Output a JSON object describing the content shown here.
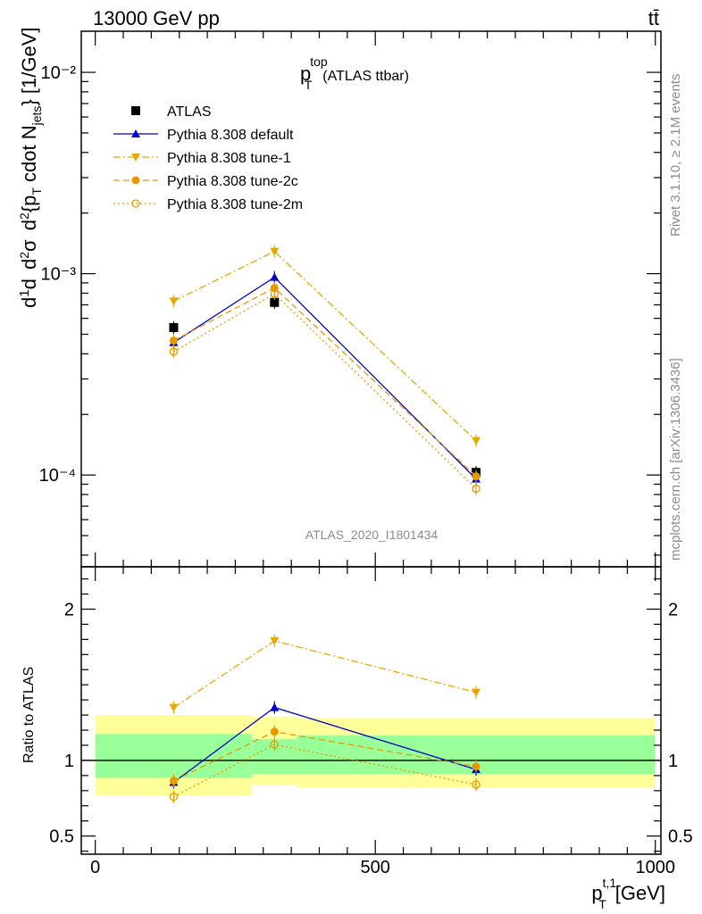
{
  "header": {
    "energy": "13000 GeV pp",
    "process": "tt̄"
  },
  "side_labels": {
    "rivet": "Rivet 3.1.10, ≥ 2.1M events",
    "mcplots": "mcplots.cern.ch [arXiv:1306.3436]"
  },
  "chart_data": [
    {
      "type": "scatter",
      "panel": "main",
      "title_main": "p",
      "title_sub": "T",
      "title_sup": "top",
      "title_suffix": "(ATLAS ttbar)",
      "analysis_label": "ATLAS_2020_I1801434",
      "ylabel": "dσ/dp_T^{t,1} cdot N_jets / σ [1/GeV]",
      "yscale": "log",
      "ylim": [
        3.5e-05,
        0.016
      ],
      "xlim": [
        -25,
        1010
      ],
      "y_ticks": [
        "10⁻⁴",
        "10⁻³",
        "10⁻²"
      ],
      "legend_position": "top-left",
      "series": [
        {
          "name": "ATLAS",
          "color": "#000000",
          "marker": "square",
          "line": "none",
          "x": [
            140,
            320,
            680
          ],
          "y": [
            0.00054,
            0.00072,
            0.000103
          ]
        },
        {
          "name": "Pythia 8.308 default",
          "color": "#0000cc",
          "marker": "triangle-up",
          "line": "solid",
          "x": [
            140,
            320,
            680
          ],
          "y": [
            0.000455,
            0.00096,
            9.55e-05
          ]
        },
        {
          "name": "Pythia 8.308 tune-1",
          "color": "#e6a800",
          "marker": "triangle-down",
          "line": "dashdot",
          "x": [
            140,
            320,
            680
          ],
          "y": [
            0.00073,
            0.00129,
            0.000148
          ]
        },
        {
          "name": "Pythia 8.308 tune-2c",
          "color": "#e69a00",
          "marker": "circle",
          "line": "dashed",
          "x": [
            140,
            320,
            680
          ],
          "y": [
            0.000465,
            0.00085,
            9.85e-05
          ]
        },
        {
          "name": "Pythia 8.308 tune-2m",
          "color": "#e69a00",
          "marker": "circle-open",
          "line": "dotted",
          "x": [
            140,
            320,
            680
          ],
          "y": [
            0.00041,
            0.000795,
            8.55e-05
          ]
        }
      ]
    },
    {
      "type": "scatter",
      "panel": "ratio",
      "ylabel": "Ratio to ATLAS",
      "xlabel": "p_T^{t,1} [GeV]",
      "xlabel_main": "p",
      "xlabel_sub": "T",
      "xlabel_sup": "t,1",
      "xlabel_unit": "[GeV]",
      "ylim": [
        0.38,
        2.28
      ],
      "xlim": [
        -25,
        1010
      ],
      "x_ticks": [
        "0",
        "500",
        "1000"
      ],
      "y_ticks": [
        "0.5",
        "1",
        "2"
      ],
      "bands": {
        "yellow_color": "#ffff99",
        "green_color": "#99ff99",
        "bins": [
          {
            "x0": 0,
            "x1": 280,
            "yellow": [
              0.77,
              1.3
            ],
            "green": [
              0.885,
              1.175
            ]
          },
          {
            "x0": 280,
            "x1": 360,
            "yellow": [
              0.84,
              1.29
            ],
            "green": [
              0.91,
              1.14
            ]
          },
          {
            "x0": 360,
            "x1": 1000,
            "yellow": [
              0.82,
              1.28
            ],
            "green": [
              0.91,
              1.165
            ]
          }
        ]
      },
      "series": [
        {
          "name": "Pythia 8.308 default",
          "color": "#0000cc",
          "marker": "triangle-up",
          "line": "solid",
          "x": [
            140,
            320,
            680
          ],
          "y": [
            0.855,
            1.35,
            0.94
          ]
        },
        {
          "name": "Pythia 8.308 tune-1",
          "color": "#e6a800",
          "marker": "triangle-down",
          "line": "dashdot",
          "x": [
            140,
            320,
            680
          ],
          "y": [
            1.35,
            1.79,
            1.45
          ]
        },
        {
          "name": "Pythia 8.308 tune-2c",
          "color": "#e69a00",
          "marker": "circle",
          "line": "dashed",
          "x": [
            140,
            320,
            680
          ],
          "y": [
            0.865,
            1.19,
            0.96
          ]
        },
        {
          "name": "Pythia 8.308 tune-2m",
          "color": "#e69a00",
          "marker": "circle-open",
          "line": "dotted",
          "x": [
            140,
            320,
            680
          ],
          "y": [
            0.76,
            1.105,
            0.84
          ]
        }
      ]
    }
  ]
}
